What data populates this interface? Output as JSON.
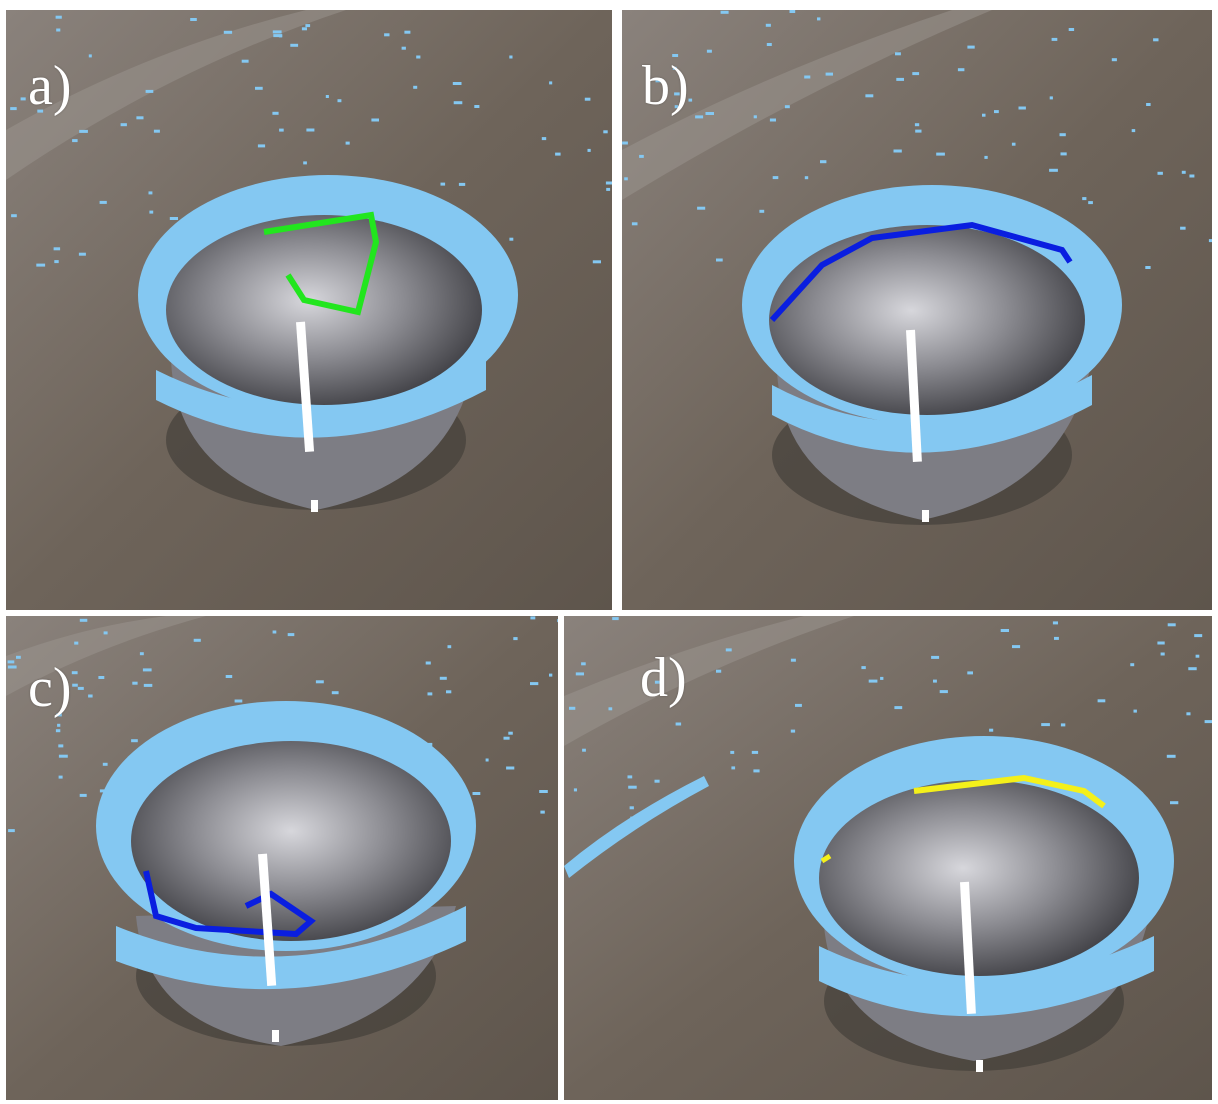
{
  "panels": [
    {
      "label": "a)",
      "edge_color": "#22e61e",
      "edge_name": "green"
    },
    {
      "label": "b)",
      "edge_color": "#0a1ee0",
      "edge_name": "blue"
    },
    {
      "label": "c)",
      "edge_color": "#0a1ee0",
      "edge_name": "blue"
    },
    {
      "label": "d)",
      "edge_color": "#f4f01a",
      "edge_name": "yellow"
    }
  ],
  "colors": {
    "ground": "#6f6459",
    "rim_points": "#84c8f2",
    "cavity": "#8e8e94",
    "axis": "#ffffff"
  }
}
